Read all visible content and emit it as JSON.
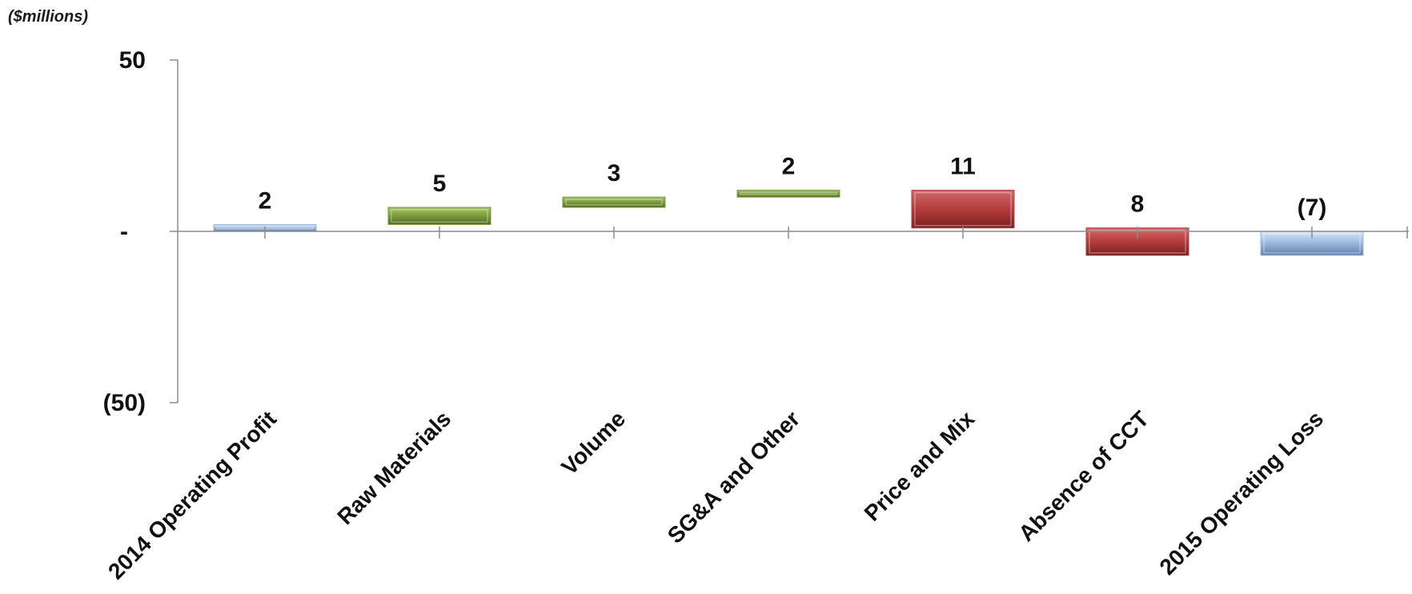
{
  "chart_data": {
    "type": "bar",
    "subtype": "waterfall",
    "unit_label": "($millions)",
    "ylim": [
      -50,
      50
    ],
    "y_ticks": [
      {
        "value": 50,
        "label": "50"
      },
      {
        "value": 0,
        "label": "-"
      },
      {
        "value": -50,
        "label": "(50)"
      }
    ],
    "categories": [
      "2014 Operating Profit",
      "Raw Materials",
      "Volume",
      "SG&A and Other",
      "Price and Mix",
      "Absence of CCT",
      "2015 Operating Loss"
    ],
    "data_labels": [
      "2",
      "5",
      "3",
      "2",
      "11",
      "8",
      "(7)"
    ],
    "bars": [
      {
        "start": 0,
        "end": 2,
        "kind": "total"
      },
      {
        "start": 2,
        "end": 7,
        "kind": "increase"
      },
      {
        "start": 7,
        "end": 10,
        "kind": "increase"
      },
      {
        "start": 10,
        "end": 12,
        "kind": "increase"
      },
      {
        "start": 12,
        "end": 1,
        "kind": "decrease"
      },
      {
        "start": 1,
        "end": -7,
        "kind": "decrease"
      },
      {
        "start": 0,
        "end": -7,
        "kind": "total"
      }
    ],
    "colors": {
      "total": "#9ab6dc",
      "increase": "#7a9a3c",
      "decrease": "#b43c3c"
    },
    "grid": false,
    "legend": "none"
  }
}
